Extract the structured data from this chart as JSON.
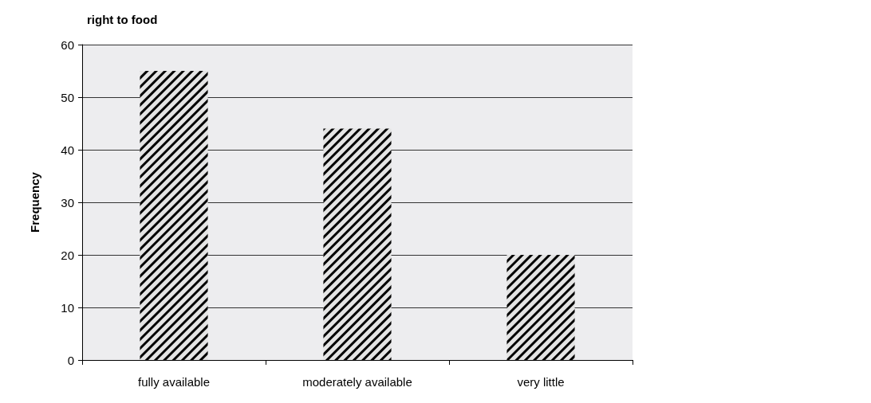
{
  "chart_data": {
    "type": "bar",
    "title": "right to food",
    "ylabel": "Frequency",
    "categories": [
      "fully available",
      "moderately available",
      "very little"
    ],
    "values": [
      55,
      44,
      20
    ],
    "color": "#e4e4e4",
    "ylim": [
      0,
      60
    ],
    "yticks": [
      0,
      10,
      20,
      30,
      40,
      50,
      60
    ],
    "grid": "y"
  }
}
